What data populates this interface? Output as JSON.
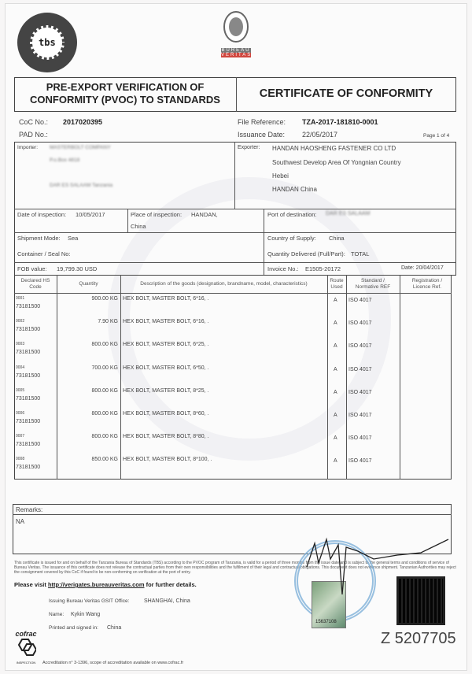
{
  "logos": {
    "tbs": {
      "text": "TANZANIA BUREAU OF STANDARDS",
      "center": "tbs"
    },
    "bv": {
      "line1": "BUREAU",
      "line2": "VERITAS"
    },
    "cofrac": "cofrac",
    "cofrac_sub": "INSPECTION"
  },
  "header": {
    "left_title_1": "PRE-EXPORT VERIFICATION OF",
    "left_title_2": "CONFORMITY (PVOC) TO STANDARDS",
    "right_title": "CERTIFICATE OF CONFORMITY"
  },
  "meta": {
    "coc_label": "CoC No.:",
    "coc_value": "2017020395",
    "pad_label": "PAD No.:",
    "file_ref_label": "File Reference:",
    "file_ref_value": "TZA-2017-181810-0001",
    "issuance_label": "Issuance Date:",
    "issuance_value": "22/05/2017",
    "page": "Page 1 of 4"
  },
  "parties": {
    "importer_label": "Importer:",
    "importer_lines": [
      "MASTERBOLT COMPANY",
      "P.o.Box 4818",
      "DAR ES SALAAM Tanzania"
    ],
    "exporter_label": "Exporter:",
    "exporter_lines": [
      "HANDAN HAOSHENG FASTENER CO LTD",
      "Southwest Develop Area Of Yongnian Country",
      "Hebei",
      "HANDAN China"
    ]
  },
  "inspection": {
    "date_label": "Date of inspection:",
    "date_value": "10/05/2017",
    "place_label": "Place of inspection:",
    "place_value": "HANDAN,",
    "place_value_2": "China",
    "port_label": "Port of destination:",
    "port_value": "DAR ES SALAAM"
  },
  "shipment": {
    "mode_label": "Shipment Mode:",
    "mode_value": "Sea",
    "container_label": "Container / Seal No:",
    "supply_label": "Country of Supply:",
    "supply_value": "China",
    "qty_label": "Quantity Delivered (Full/Part):",
    "qty_value": "TOTAL"
  },
  "fob": {
    "label": "FOB value:",
    "value": "19,799.30 USD",
    "invoice_label": "Invoice No.:",
    "invoice_value": "E1505-20172",
    "date": "Date: 20/04/2017"
  },
  "table": {
    "headers": [
      "Declared HS Code",
      "Quantity",
      "Description of the goods (designation, brandname, model, characteristics)",
      "Route Used",
      "Standard / Normative REF",
      "Registration / Licence Ref."
    ],
    "rows": [
      {
        "item": "0001",
        "hs": "73181500",
        "qty": "900.00 KG",
        "desc": "HEX BOLT, MASTER BOLT, 6*16, .",
        "route": "A",
        "std": "ISO 4017"
      },
      {
        "item": "0002",
        "hs": "73181500",
        "qty": "7.90 KG",
        "desc": "HEX BOLT, MASTER BOLT, 6*16, .",
        "route": "A",
        "std": "ISO 4017"
      },
      {
        "item": "0003",
        "hs": "73181500",
        "qty": "800.00 KG",
        "desc": "HEX BOLT, MASTER BOLT, 6*25, .",
        "route": "A",
        "std": "ISO 4017"
      },
      {
        "item": "0004",
        "hs": "73181500",
        "qty": "700.00 KG",
        "desc": "HEX BOLT, MASTER BOLT, 6*50, .",
        "route": "A",
        "std": "ISO 4017"
      },
      {
        "item": "0005",
        "hs": "73181500",
        "qty": "800.00 KG",
        "desc": "HEX BOLT, MASTER BOLT, 8*25, .",
        "route": "A",
        "std": "ISO 4017"
      },
      {
        "item": "0006",
        "hs": "73181500",
        "qty": "800.00 KG",
        "desc": "HEX BOLT, MASTER BOLT, 8*60, .",
        "route": "A",
        "std": "ISO 4017"
      },
      {
        "item": "0007",
        "hs": "73181500",
        "qty": "800.00 KG",
        "desc": "HEX BOLT, MASTER BOLT, 8*80, .",
        "route": "A",
        "std": "ISO 4017"
      },
      {
        "item": "0008",
        "hs": "73181500",
        "qty": "850.00 KG",
        "desc": "HEX BOLT, MASTER BOLT, 8*100, .",
        "route": "A",
        "std": "ISO 4017"
      }
    ]
  },
  "remarks": {
    "label": "Remarks:",
    "value": "NA"
  },
  "footer": {
    "disclaimer": "This certificate is issued for and on behalf of the Tanzania Bureau of Standards (TBS) according to the PVOC program of Tanzania, is valid for a period of three months from the issue date and is subject to the general terms and conditions of service of Bureau Veritas. The issuance of this certificate does not release the contractual parties from their own responsibilities and the fulfilment of their legal and contractual obligations. This document does not evidence shipment. Tanzanian Authorities may reject the consignment covered by this CoC if found to be non-conforming on verification at the port of entry.",
    "visit_prefix": "Please visit ",
    "visit_url": "http://verigates.bureauveritas.com",
    "visit_suffix": " for further details.",
    "office_label": "Issuing Bureau Veritas GSIT Office:",
    "office_value": "SHANGHAI, China",
    "name_label": "Name:",
    "name_value": "Kykin Wang",
    "signed_label": "Printed and signed in:",
    "signed_value": "China",
    "serial": "Z 5207705",
    "hologram_no": "15637108",
    "accreditation": "Accreditation n° 3-1396, scope of accreditation available on www.cofrac.fr"
  },
  "colors": {
    "bv_red": "#d0473f",
    "stamp_blue": "#7fb1d9",
    "ink": "#222222"
  }
}
